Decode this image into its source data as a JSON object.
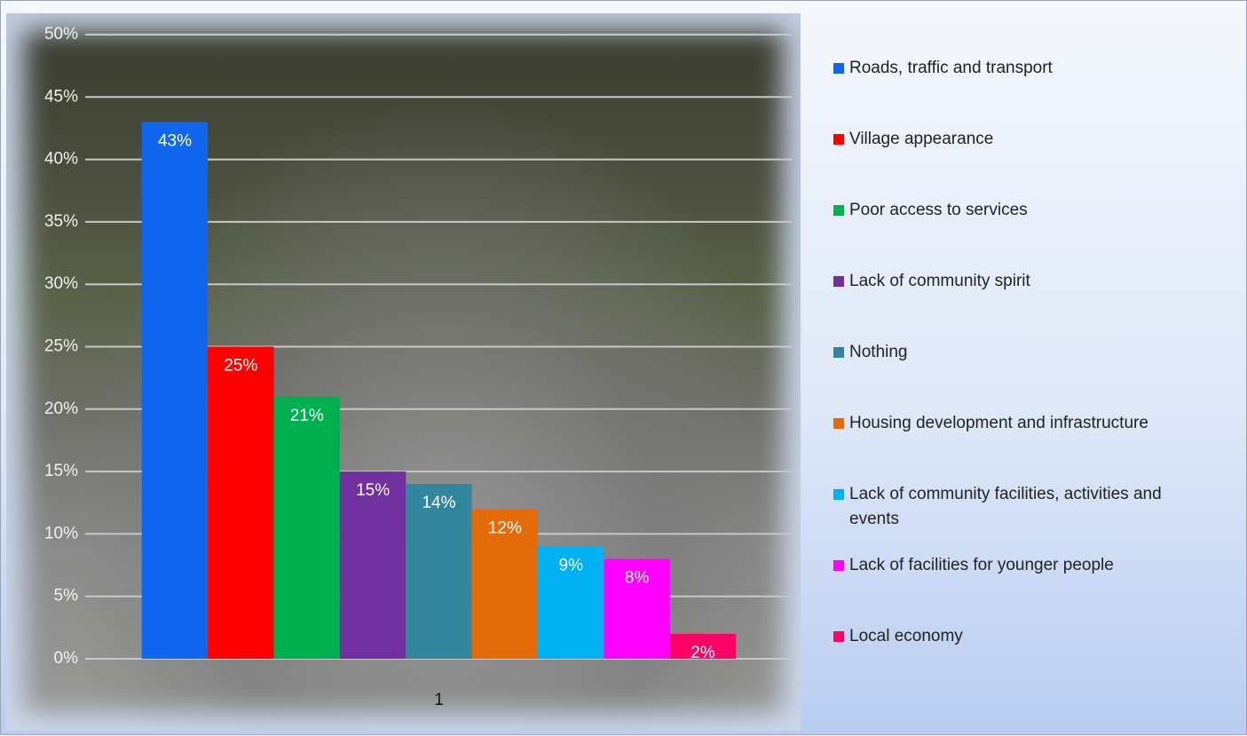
{
  "chart_data": {
    "type": "bar",
    "categories": [
      "1"
    ],
    "series": [
      {
        "name": "Roads, traffic and transport",
        "color": "#1166ee",
        "values": [
          43
        ],
        "value_labels": [
          "43%"
        ]
      },
      {
        "name": "Village appearance",
        "color": "#ff0000",
        "values": [
          25
        ],
        "value_labels": [
          "25%"
        ]
      },
      {
        "name": "Poor access to services",
        "color": "#00b050",
        "values": [
          21
        ],
        "value_labels": [
          "21%"
        ]
      },
      {
        "name": "Lack of community spirit",
        "color": "#7030a0",
        "values": [
          15
        ],
        "value_labels": [
          "15%"
        ]
      },
      {
        "name": "Nothing",
        "color": "#31859c",
        "values": [
          14
        ],
        "value_labels": [
          "14%"
        ]
      },
      {
        "name": "Housing development and infrastructure",
        "color": "#e36c09",
        "values": [
          12
        ],
        "value_labels": [
          "12%"
        ]
      },
      {
        "name": "Lack of community facilities, activities and events",
        "color": "#00b0f0",
        "values": [
          9
        ],
        "value_labels": [
          "9%"
        ]
      },
      {
        "name": "Lack of facilities for younger people",
        "color": "#ff00ff",
        "values": [
          8
        ],
        "value_labels": [
          "8%"
        ]
      },
      {
        "name": "Local economy",
        "color": "#ff0066",
        "values": [
          2
        ],
        "value_labels": [
          "2%"
        ]
      }
    ],
    "ylim": [
      0,
      50
    ],
    "yticks": [
      {
        "value": 0,
        "label": "0%"
      },
      {
        "value": 5,
        "label": "5%"
      },
      {
        "value": 10,
        "label": "10%"
      },
      {
        "value": 15,
        "label": "15%"
      },
      {
        "value": 20,
        "label": "20%"
      },
      {
        "value": 25,
        "label": "25%"
      },
      {
        "value": 30,
        "label": "30%"
      },
      {
        "value": 35,
        "label": "35%"
      },
      {
        "value": 40,
        "label": "40%"
      },
      {
        "value": 45,
        "label": "45%"
      },
      {
        "value": 50,
        "label": "50%"
      }
    ],
    "grid": true,
    "legend": "right"
  }
}
